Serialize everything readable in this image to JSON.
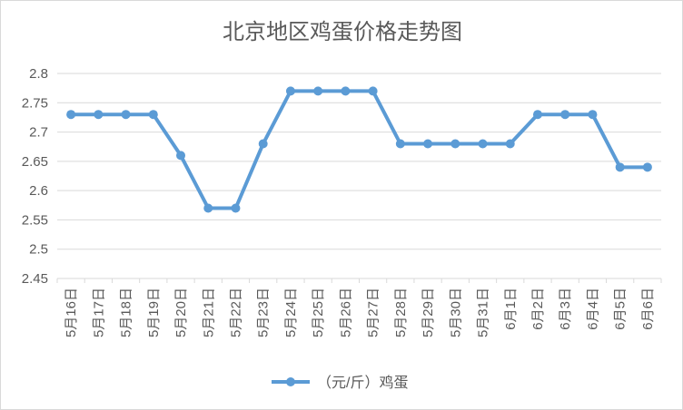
{
  "chart_data": {
    "type": "line",
    "title": "北京地区鸡蛋价格走势图",
    "xlabel": "",
    "ylabel": "",
    "categories": [
      "5月16日",
      "5月17日",
      "5月18日",
      "5月19日",
      "5月20日",
      "5月21日",
      "5月22日",
      "5月23日",
      "5月24日",
      "5月25日",
      "5月26日",
      "5月27日",
      "5月28日",
      "5月29日",
      "5月30日",
      "5月31日",
      "6月1日",
      "6月2日",
      "6月3日",
      "6月4日",
      "6月5日",
      "6月6日"
    ],
    "series": [
      {
        "name": "（元/斤）鸡蛋",
        "values": [
          2.73,
          2.73,
          2.73,
          2.73,
          2.66,
          2.57,
          2.57,
          2.68,
          2.77,
          2.77,
          2.77,
          2.77,
          2.68,
          2.68,
          2.68,
          2.68,
          2.68,
          2.73,
          2.73,
          2.73,
          2.64,
          2.64
        ]
      }
    ],
    "yticks": [
      "2.45",
      "2.5",
      "2.55",
      "2.6",
      "2.65",
      "2.7",
      "2.75",
      "2.8"
    ],
    "ylim": [
      2.45,
      2.8
    ],
    "grid": true,
    "legend": "bottom",
    "colors": {
      "line": "#5b9bd5",
      "grid": "#d9d9d9",
      "text": "#595959"
    }
  }
}
